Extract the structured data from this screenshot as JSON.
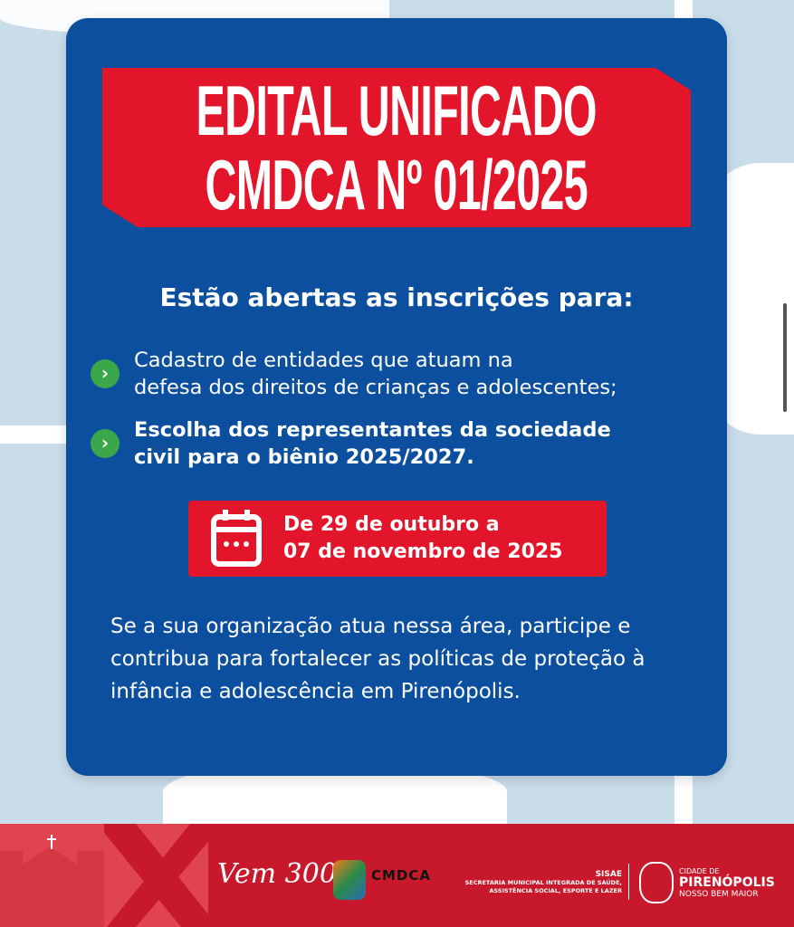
{
  "title": {
    "line1": "EDITAL UNIFICADO",
    "line2": "CMDCA Nº 01/2025"
  },
  "subtitle": "Estão abertas as inscrições para:",
  "items": [
    {
      "icon": "chevron-right-icon",
      "line1": "Cadastro de entidades que atuam na",
      "line2": "defesa dos direitos de crianças e adolescentes;",
      "bold": false
    },
    {
      "icon": "chevron-right-icon",
      "line1": "Escolha dos representantes da sociedade",
      "line2": "civil para o biênio 2025/2027.",
      "bold": true
    }
  ],
  "date": {
    "icon": "calendar-icon",
    "line1": "De 29 de outubro a",
    "line2": "07 de novembro de 2025"
  },
  "paragraph": "Se a sua organização atua nessa área, participe e contribua para fortalecer as políticas de proteção à infância e adolescência em Pirenópolis.",
  "footer": {
    "vem300": "Vem 300",
    "cmdca": "CMDCA",
    "sisae": "SISAE",
    "sisae_desc1": "SECRETARIA MUNICIPAL INTEGRADA DE SAÚDE,",
    "sisae_desc2": "ASSISTÊNCIA SOCIAL, ESPORTE E LAZER",
    "city_pre": "CIDADE DE",
    "city": "PIRENÓPOLIS",
    "city_slogan": "NOSSO BEM MAIOR"
  },
  "colors": {
    "blue": "#0b4f9e",
    "red": "#e3152a",
    "green": "#3aa84a",
    "background": "#c9dcea",
    "footer": "#c8192c"
  }
}
